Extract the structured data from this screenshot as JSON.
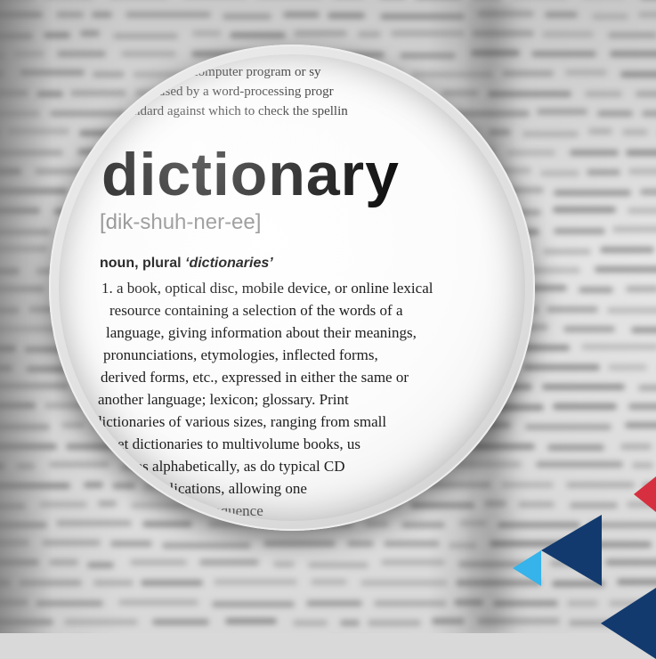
{
  "lens": {
    "top_lines": [
      "computer program or sy",
      "used by a word-processing progr",
      "ndard against which to check the spellin"
    ],
    "headword": "dictionary",
    "pronunciation": "[dik-shuh-ner-ee]",
    "part_of_speech": "noun, plural",
    "plural_form": "‘dictionaries’",
    "definition_lines": [
      "1. a book, optical disc, mobile device, or online lexical",
      "resource containing a selection of the words of a",
      "language, giving information about their meanings,",
      "pronunciations, etymologies, inflected forms,",
      "derived forms, etc., expressed in either the same or",
      "another language; lexicon; glossary. Print",
      "dictionaries of various sizes, ranging from small",
      "cket dictionaries to multivolume books, us",
      "ntries alphabetically, as do typical CD",
      "applications, allowing one",
      "in sequence"
    ]
  },
  "decor": {
    "colors": {
      "red": "#d63040",
      "navy": "#123a6e",
      "light_blue": "#35b3ea"
    }
  }
}
